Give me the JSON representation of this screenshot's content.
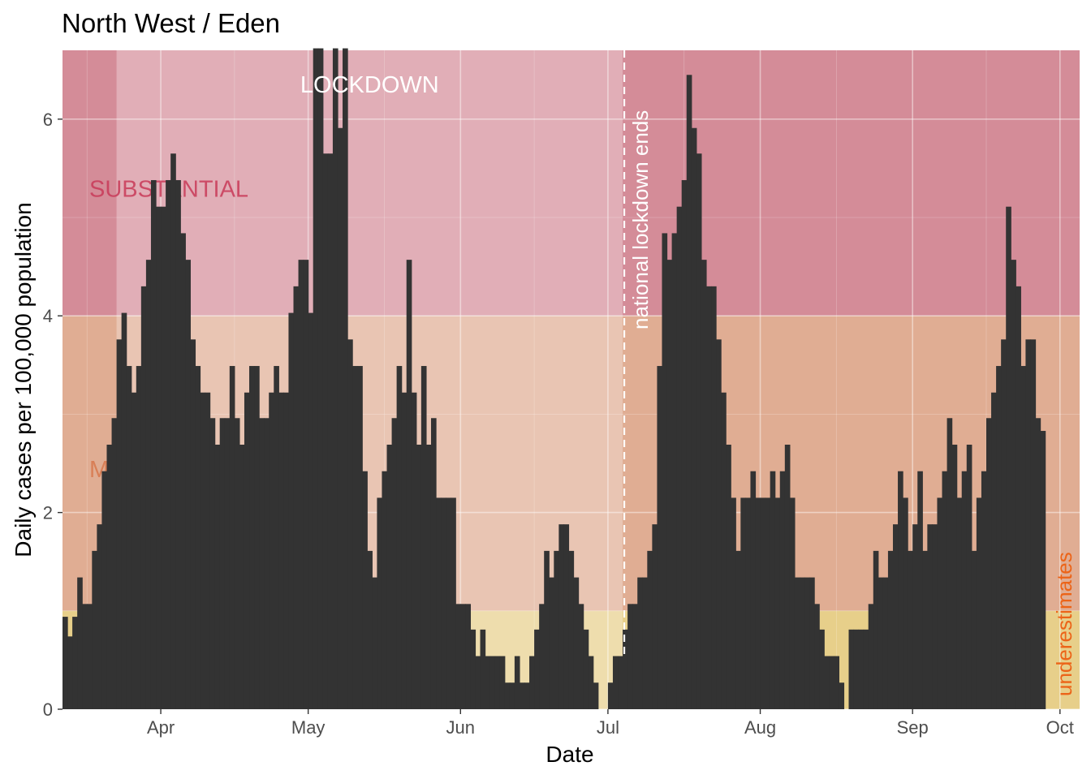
{
  "title": "North West / Eden",
  "chart_data": {
    "type": "bar",
    "title": "North West / Eden",
    "xlabel": "Date",
    "ylabel": "Daily cases per 100,000 population",
    "x_start": "2020-03-12",
    "x_end": "2020-10-04",
    "ylim": [
      0,
      6.7
    ],
    "y_ticks": [
      0,
      2,
      4,
      6
    ],
    "x_ticks": [
      {
        "date": "2020-04-01",
        "label": "Apr"
      },
      {
        "date": "2020-05-01",
        "label": "May"
      },
      {
        "date": "2020-06-01",
        "label": "Jun"
      },
      {
        "date": "2020-07-01",
        "label": "Jul"
      },
      {
        "date": "2020-08-01",
        "label": "Aug"
      },
      {
        "date": "2020-09-01",
        "label": "Sep"
      },
      {
        "date": "2020-10-01",
        "label": "Oct"
      }
    ],
    "grid": true,
    "bands": [
      {
        "label": "SUBSTANTIAL",
        "from": 4,
        "to": 6.7,
        "color": "#d48c98",
        "label_color": "#c83a58",
        "label_y": 5.3
      },
      {
        "label": "M",
        "from": 1,
        "to": 4,
        "color": "#e0ad93",
        "label_color": "#d7774b",
        "label_y": 2.45
      },
      {
        "label": "",
        "from": 0,
        "to": 1,
        "color": "#e7cf8a",
        "label_color": "",
        "label_y": 0
      }
    ],
    "lockdown": {
      "label": "LOCKDOWN",
      "start": "2020-03-23",
      "end": "2020-07-04",
      "color": "#ffffff",
      "opacity": 0.3
    },
    "annotations": [
      {
        "text": "national lockdown ends",
        "date": "2020-07-04"
      },
      {
        "text": "underestimates",
        "color": "#ec6418"
      }
    ],
    "bar_color": "#333333",
    "values": [
      0.94,
      0.74,
      0.94,
      1.34,
      1.07,
      1.07,
      1.61,
      1.88,
      2.42,
      2.69,
      2.96,
      3.76,
      4.03,
      3.49,
      3.22,
      3.49,
      4.3,
      4.57,
      5.38,
      5.11,
      5.11,
      5.38,
      5.65,
      5.38,
      4.84,
      4.57,
      3.76,
      3.49,
      3.22,
      3.22,
      2.96,
      2.69,
      2.96,
      2.96,
      3.49,
      2.96,
      2.69,
      3.22,
      3.49,
      3.49,
      2.96,
      2.96,
      3.22,
      3.49,
      3.22,
      3.22,
      4.03,
      4.3,
      4.57,
      4.57,
      4.03,
      6.72,
      6.72,
      5.65,
      5.65,
      6.72,
      5.91,
      6.72,
      3.76,
      3.49,
      3.49,
      2.42,
      1.61,
      1.34,
      2.15,
      2.42,
      2.69,
      2.96,
      3.49,
      3.22,
      4.57,
      3.22,
      2.69,
      3.49,
      2.69,
      2.96,
      2.15,
      2.15,
      2.15,
      2.15,
      1.07,
      1.07,
      1.07,
      0.81,
      0.54,
      0.81,
      0.54,
      0.54,
      0.54,
      0.54,
      0.27,
      0.27,
      0.54,
      0.27,
      0.27,
      0.54,
      0.81,
      1.07,
      1.61,
      1.34,
      1.61,
      1.88,
      1.88,
      1.61,
      1.34,
      1.07,
      0.81,
      0.54,
      0.27,
      0.0,
      0.0,
      0.27,
      0.54,
      0.54,
      0.81,
      1.07,
      1.07,
      1.34,
      1.34,
      1.61,
      1.88,
      3.49,
      4.84,
      4.57,
      4.84,
      5.11,
      5.38,
      6.45,
      5.91,
      5.65,
      4.57,
      4.3,
      4.3,
      3.76,
      3.22,
      2.69,
      2.15,
      1.61,
      2.15,
      2.15,
      2.42,
      2.15,
      2.15,
      2.15,
      2.42,
      2.15,
      2.42,
      2.69,
      2.15,
      1.34,
      1.34,
      1.34,
      1.34,
      1.07,
      0.81,
      0.54,
      0.54,
      0.54,
      0.27,
      0.0,
      0.81,
      0.81,
      0.81,
      0.81,
      1.07,
      1.61,
      1.34,
      1.34,
      1.61,
      1.88,
      2.42,
      2.15,
      1.61,
      1.88,
      2.42,
      1.61,
      1.88,
      1.88,
      2.15,
      2.42,
      2.96,
      2.69,
      2.15,
      2.42,
      2.69,
      1.61,
      2.15,
      2.42,
      2.96,
      3.22,
      3.49,
      3.76,
      5.11,
      4.57,
      4.3,
      3.49,
      3.76,
      3.76,
      2.96,
      2.83
    ]
  }
}
